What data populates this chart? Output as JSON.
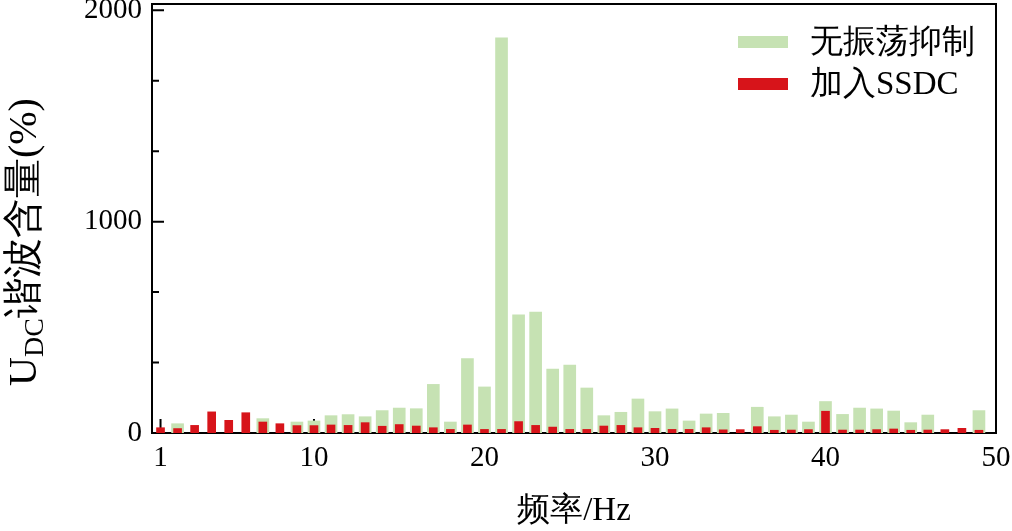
{
  "chart_data": {
    "type": "bar",
    "xlabel": "频率/Hz",
    "ylabel": "U$_{DC}$谐波含量(%)",
    "x": [
      1,
      2,
      3,
      4,
      5,
      6,
      7,
      8,
      9,
      10,
      11,
      12,
      13,
      14,
      15,
      16,
      17,
      18,
      19,
      20,
      21,
      22,
      23,
      24,
      25,
      26,
      27,
      28,
      29,
      30,
      31,
      32,
      33,
      34,
      35,
      36,
      37,
      38,
      39,
      40,
      41,
      42,
      43,
      44,
      45,
      46,
      47,
      48,
      49
    ],
    "series": [
      {
        "name": "无振荡抑制",
        "color": "#c6e2b3",
        "values": [
          null,
          44,
          null,
          null,
          null,
          null,
          68,
          null,
          52,
          57,
          82,
          87,
          77,
          106,
          118,
          115,
          230,
          52,
          352,
          218,
          1870,
          559,
          572,
          303,
          321,
          213,
          82,
          98,
          161,
          101,
          114,
          57,
          90,
          93,
          null,
          122,
          77,
          85,
          52,
          149,
          88,
          118,
          114,
          104,
          49,
          85,
          null,
          null,
          106
        ]
      },
      {
        "name": "加入SSDC",
        "color": "#d7141a",
        "values": [
          25,
          21,
          36,
          100,
          60,
          96,
          52,
          44,
          35,
          35,
          38,
          36,
          49,
          32,
          40,
          33,
          25,
          17,
          38,
          17,
          17,
          54,
          36,
          28,
          17,
          17,
          33,
          36,
          25,
          22,
          17,
          17,
          25,
          15,
          16,
          30,
          13,
          14,
          16,
          103,
          14,
          14,
          16,
          19,
          13,
          14,
          16,
          22,
          13
        ]
      }
    ],
    "xlim": [
      0.5,
      50
    ],
    "xticks": [
      1,
      10,
      20,
      30,
      40,
      50
    ],
    "ylim": [
      0,
      2030
    ],
    "yticks": [
      0,
      {
        "value": 333.3,
        "label": null
      },
      {
        "value": 666.7,
        "label": null
      },
      1000,
      {
        "value": 1333.3,
        "label": null
      },
      {
        "value": 1666.7,
        "label": null
      },
      2000
    ],
    "legend": "top right"
  }
}
